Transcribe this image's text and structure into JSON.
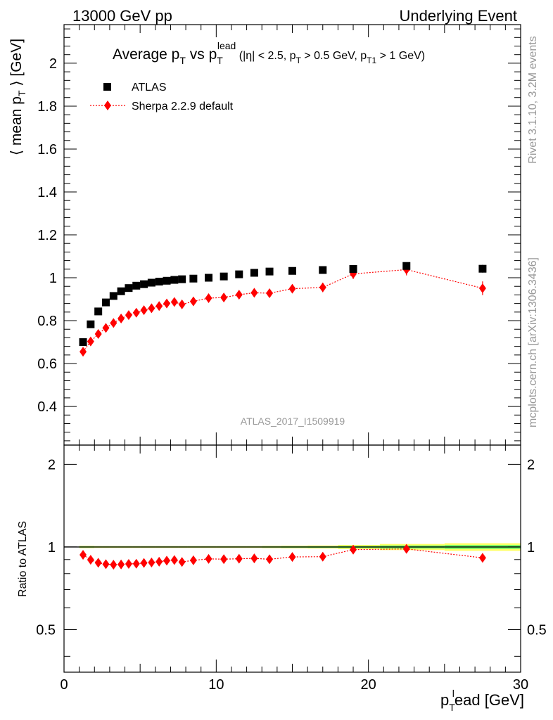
{
  "header": {
    "left": "13000 GeV pp",
    "right": "Underlying Event"
  },
  "side_labels": {
    "rivet": "Rivet 3.1.10,  3.2M events",
    "mcplots": "mcplots.cern.ch [arXiv:1306.3436]"
  },
  "chart_data": [
    {
      "type": "scatter",
      "panel": "main",
      "title": "Average p_T vs p_T^lead (|η| < 2.5, p_T > 0.5 GeV, p_T1 > 1 GeV)",
      "title_parts": {
        "main": "Average p",
        "sub1": "T",
        "vs": " vs p",
        "sub2": "T",
        "sup2": "lead",
        "cond_a": " (|η| < 2.5, p",
        "cond_sub_a": "T",
        "cond_b": " > 0.5 GeV, p",
        "cond_sub_b": "T1",
        "cond_c": " > 1 GeV)"
      },
      "ylabel_parts": {
        "pre": "⟨ mean p",
        "sub": "T",
        "post": " ⟩ [GeV]"
      },
      "xlim": [
        0,
        30
      ],
      "ylim": [
        0.22,
        2.18
      ],
      "yticks": [
        0.4,
        0.6,
        0.8,
        1,
        1.2,
        1.4,
        1.6,
        1.8,
        2
      ],
      "ytick_labels": [
        "0.4",
        "0.6",
        "0.8",
        "1",
        "1.2",
        "1.4",
        "1.6",
        "1.8",
        "2"
      ],
      "watermark": "ATLAS_2017_I1509919",
      "legend_position": "top-left",
      "x": [
        1.25,
        1.75,
        2.25,
        2.75,
        3.25,
        3.75,
        4.25,
        4.75,
        5.25,
        5.75,
        6.25,
        6.75,
        7.25,
        7.75,
        8.5,
        9.5,
        10.5,
        11.5,
        12.5,
        13.5,
        15,
        17,
        19,
        22.5,
        27.5
      ],
      "series": [
        {
          "name": "ATLAS",
          "color": "#000000",
          "marker": "square",
          "values": [
            0.7,
            0.783,
            0.843,
            0.885,
            0.915,
            0.937,
            0.952,
            0.963,
            0.97,
            0.977,
            0.982,
            0.986,
            0.99,
            0.993,
            0.996,
            1.0,
            1.006,
            1.016,
            1.023,
            1.029,
            1.032,
            1.036,
            1.041,
            1.055,
            1.042
          ],
          "errors": [
            0.004,
            0.004,
            0.004,
            0.004,
            0.004,
            0.004,
            0.004,
            0.004,
            0.004,
            0.004,
            0.004,
            0.004,
            0.004,
            0.004,
            0.004,
            0.004,
            0.004,
            0.004,
            0.004,
            0.005,
            0.006,
            0.007,
            0.01,
            0.016,
            0.018
          ]
        },
        {
          "name": "Sherpa 2.2.9 default",
          "color": "#ff0000",
          "marker": "diamond",
          "line": "dotted",
          "values": [
            0.655,
            0.703,
            0.738,
            0.766,
            0.789,
            0.81,
            0.826,
            0.837,
            0.849,
            0.858,
            0.868,
            0.88,
            0.887,
            0.876,
            0.89,
            0.905,
            0.908,
            0.921,
            0.93,
            0.928,
            0.949,
            0.955,
            1.018,
            1.038,
            0.951
          ],
          "errors": [
            0.008,
            0.008,
            0.008,
            0.008,
            0.008,
            0.008,
            0.008,
            0.008,
            0.008,
            0.008,
            0.009,
            0.009,
            0.009,
            0.009,
            0.01,
            0.011,
            0.012,
            0.013,
            0.014,
            0.017,
            0.019,
            0.022,
            0.024,
            0.027,
            0.032
          ]
        }
      ]
    },
    {
      "type": "scatter",
      "panel": "ratio",
      "ylabel": "Ratio to ATLAS",
      "xlabel_parts": {
        "pre": "p",
        "sub": "T",
        "sup": "l",
        "post": "ead [GeV]"
      },
      "xlim": [
        0,
        30
      ],
      "ylim": [
        0.35,
        2.35
      ],
      "xticks": [
        0,
        10,
        20,
        30
      ],
      "xtick_labels": [
        "0",
        "10",
        "20",
        "30"
      ],
      "yticks": [
        0.5,
        1,
        2
      ],
      "ytick_labels": [
        "0.5",
        "1",
        "2"
      ],
      "band_color": "#ffff66",
      "band_inner_color": "#66ff66",
      "band_halfwidth": [
        0.006,
        0.006,
        0.005,
        0.005,
        0.005,
        0.005,
        0.005,
        0.005,
        0.005,
        0.005,
        0.005,
        0.005,
        0.005,
        0.005,
        0.005,
        0.005,
        0.005,
        0.005,
        0.005,
        0.006,
        0.007,
        0.008,
        0.011,
        0.016,
        0.02
      ],
      "series": [
        {
          "name": "Sherpa 2.2.9 default",
          "color": "#ff0000",
          "values": [
            0.936,
            0.898,
            0.876,
            0.866,
            0.862,
            0.864,
            0.868,
            0.869,
            0.875,
            0.878,
            0.884,
            0.892,
            0.896,
            0.882,
            0.894,
            0.905,
            0.903,
            0.906,
            0.909,
            0.902,
            0.92,
            0.922,
            0.978,
            0.984,
            0.913
          ],
          "errors": [
            0.011,
            0.01,
            0.009,
            0.009,
            0.009,
            0.009,
            0.009,
            0.009,
            0.009,
            0.009,
            0.01,
            0.01,
            0.01,
            0.01,
            0.011,
            0.012,
            0.013,
            0.014,
            0.015,
            0.017,
            0.019,
            0.022,
            0.025,
            0.027,
            0.033
          ]
        }
      ]
    }
  ]
}
